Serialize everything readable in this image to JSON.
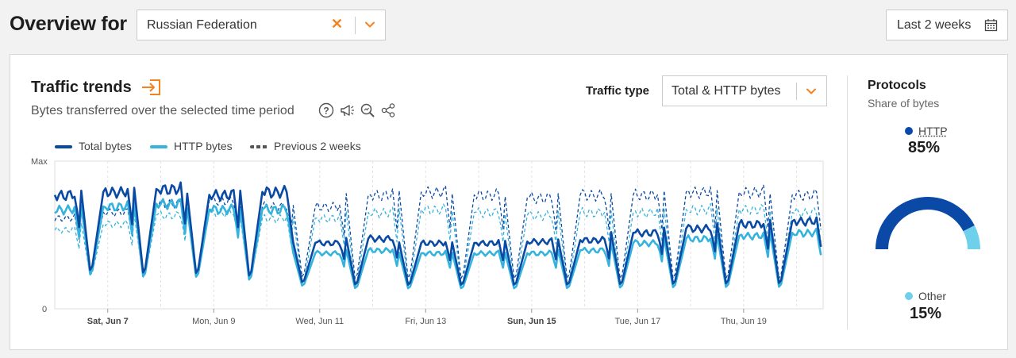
{
  "header": {
    "title": "Overview for",
    "location": {
      "value": "Russian Federation",
      "clear_icon": "close-icon",
      "toggle_icon": "chevron-down-icon"
    },
    "date_range": {
      "label": "Last 2 weeks",
      "icon": "calendar-icon"
    }
  },
  "traffic": {
    "title": "Traffic trends",
    "title_icon": "open-in-panel-icon",
    "subtitle": "Bytes transferred over the selected time period",
    "tools": [
      "help-icon",
      "megaphone-icon",
      "zoom-icon",
      "share-icon"
    ],
    "type_label": "Traffic type",
    "type_value": "Total & HTTP bytes"
  },
  "colors": {
    "accent": "#f6821f",
    "total": "#0a4aa3",
    "http": "#36b3dd",
    "prev_total": "#0a4aa3",
    "prev_http": "#36b3dd",
    "gauge_http": "#0a49a5",
    "gauge_other": "#6fd0ec"
  },
  "chart_data": {
    "type": "line",
    "ylabel_top": "Max",
    "ylabel_bottom": "0",
    "ylim": [
      0,
      1
    ],
    "x_ticks": [
      {
        "label": "Sat, Jun 7",
        "bold": true
      },
      {
        "label": "Mon, Jun 9",
        "bold": false
      },
      {
        "label": "Wed, Jun 11",
        "bold": false
      },
      {
        "label": "Fri, Jun 13",
        "bold": false
      },
      {
        "label": "Sun, Jun 15",
        "bold": true
      },
      {
        "label": "Tue, Jun 17",
        "bold": false
      },
      {
        "label": "Thu, Jun 19",
        "bold": false
      }
    ],
    "legend": [
      {
        "name": "Total bytes",
        "style": "solid",
        "color": "#0a4aa3"
      },
      {
        "name": "HTTP bytes",
        "style": "solid",
        "color": "#36b3dd"
      },
      {
        "name": "Previous 2 weeks",
        "style": "dashed",
        "color": "#555555"
      }
    ],
    "days": [
      "Jun 6",
      "Jun 7",
      "Jun 8",
      "Jun 9",
      "Jun 10",
      "Jun 11",
      "Jun 12",
      "Jun 13",
      "Jun 14",
      "Jun 15",
      "Jun 16",
      "Jun 17",
      "Jun 18",
      "Jun 19",
      "Jun 20"
    ],
    "series": [
      {
        "name": "Total bytes",
        "day_peaks": [
          0.78,
          0.8,
          0.82,
          0.78,
          0.8,
          0.45,
          0.48,
          0.45,
          0.45,
          0.46,
          0.47,
          0.52,
          0.55,
          0.58,
          0.6
        ],
        "night_low": [
          0.2,
          0.22,
          0.2,
          0.2,
          0.18,
          0.16,
          0.14,
          0.14,
          0.14,
          0.14,
          0.14,
          0.14,
          0.14,
          0.14,
          0.14
        ]
      },
      {
        "name": "HTTP bytes",
        "day_peaks": [
          0.68,
          0.7,
          0.72,
          0.68,
          0.68,
          0.38,
          0.4,
          0.38,
          0.38,
          0.38,
          0.4,
          0.45,
          0.48,
          0.5,
          0.52
        ],
        "night_low": [
          0.18,
          0.2,
          0.18,
          0.18,
          0.16,
          0.14,
          0.12,
          0.12,
          0.12,
          0.12,
          0.12,
          0.12,
          0.12,
          0.12,
          0.12
        ]
      },
      {
        "name": "Previous 2 weeks (total)",
        "day_peaks": [
          0.62,
          0.66,
          0.72,
          0.74,
          0.7,
          0.7,
          0.78,
          0.8,
          0.78,
          0.76,
          0.78,
          0.78,
          0.8,
          0.8,
          0.78
        ],
        "night_low": [
          0.24,
          0.24,
          0.22,
          0.22,
          0.2,
          0.18,
          0.16,
          0.16,
          0.16,
          0.16,
          0.16,
          0.16,
          0.16,
          0.16,
          0.16
        ]
      },
      {
        "name": "Previous 2 weeks (HTTP)",
        "day_peaks": [
          0.54,
          0.58,
          0.64,
          0.66,
          0.62,
          0.62,
          0.66,
          0.68,
          0.66,
          0.64,
          0.66,
          0.66,
          0.68,
          0.68,
          0.66
        ],
        "night_low": [
          0.2,
          0.2,
          0.18,
          0.18,
          0.16,
          0.14,
          0.13,
          0.13,
          0.13,
          0.13,
          0.13,
          0.13,
          0.13,
          0.13,
          0.13
        ]
      }
    ]
  },
  "protocols": {
    "title": "Protocols",
    "subtitle": "Share of bytes",
    "items": [
      {
        "name": "HTTP",
        "pct": "85%",
        "share": 0.85
      },
      {
        "name": "Other",
        "pct": "15%",
        "share": 0.15
      }
    ]
  }
}
